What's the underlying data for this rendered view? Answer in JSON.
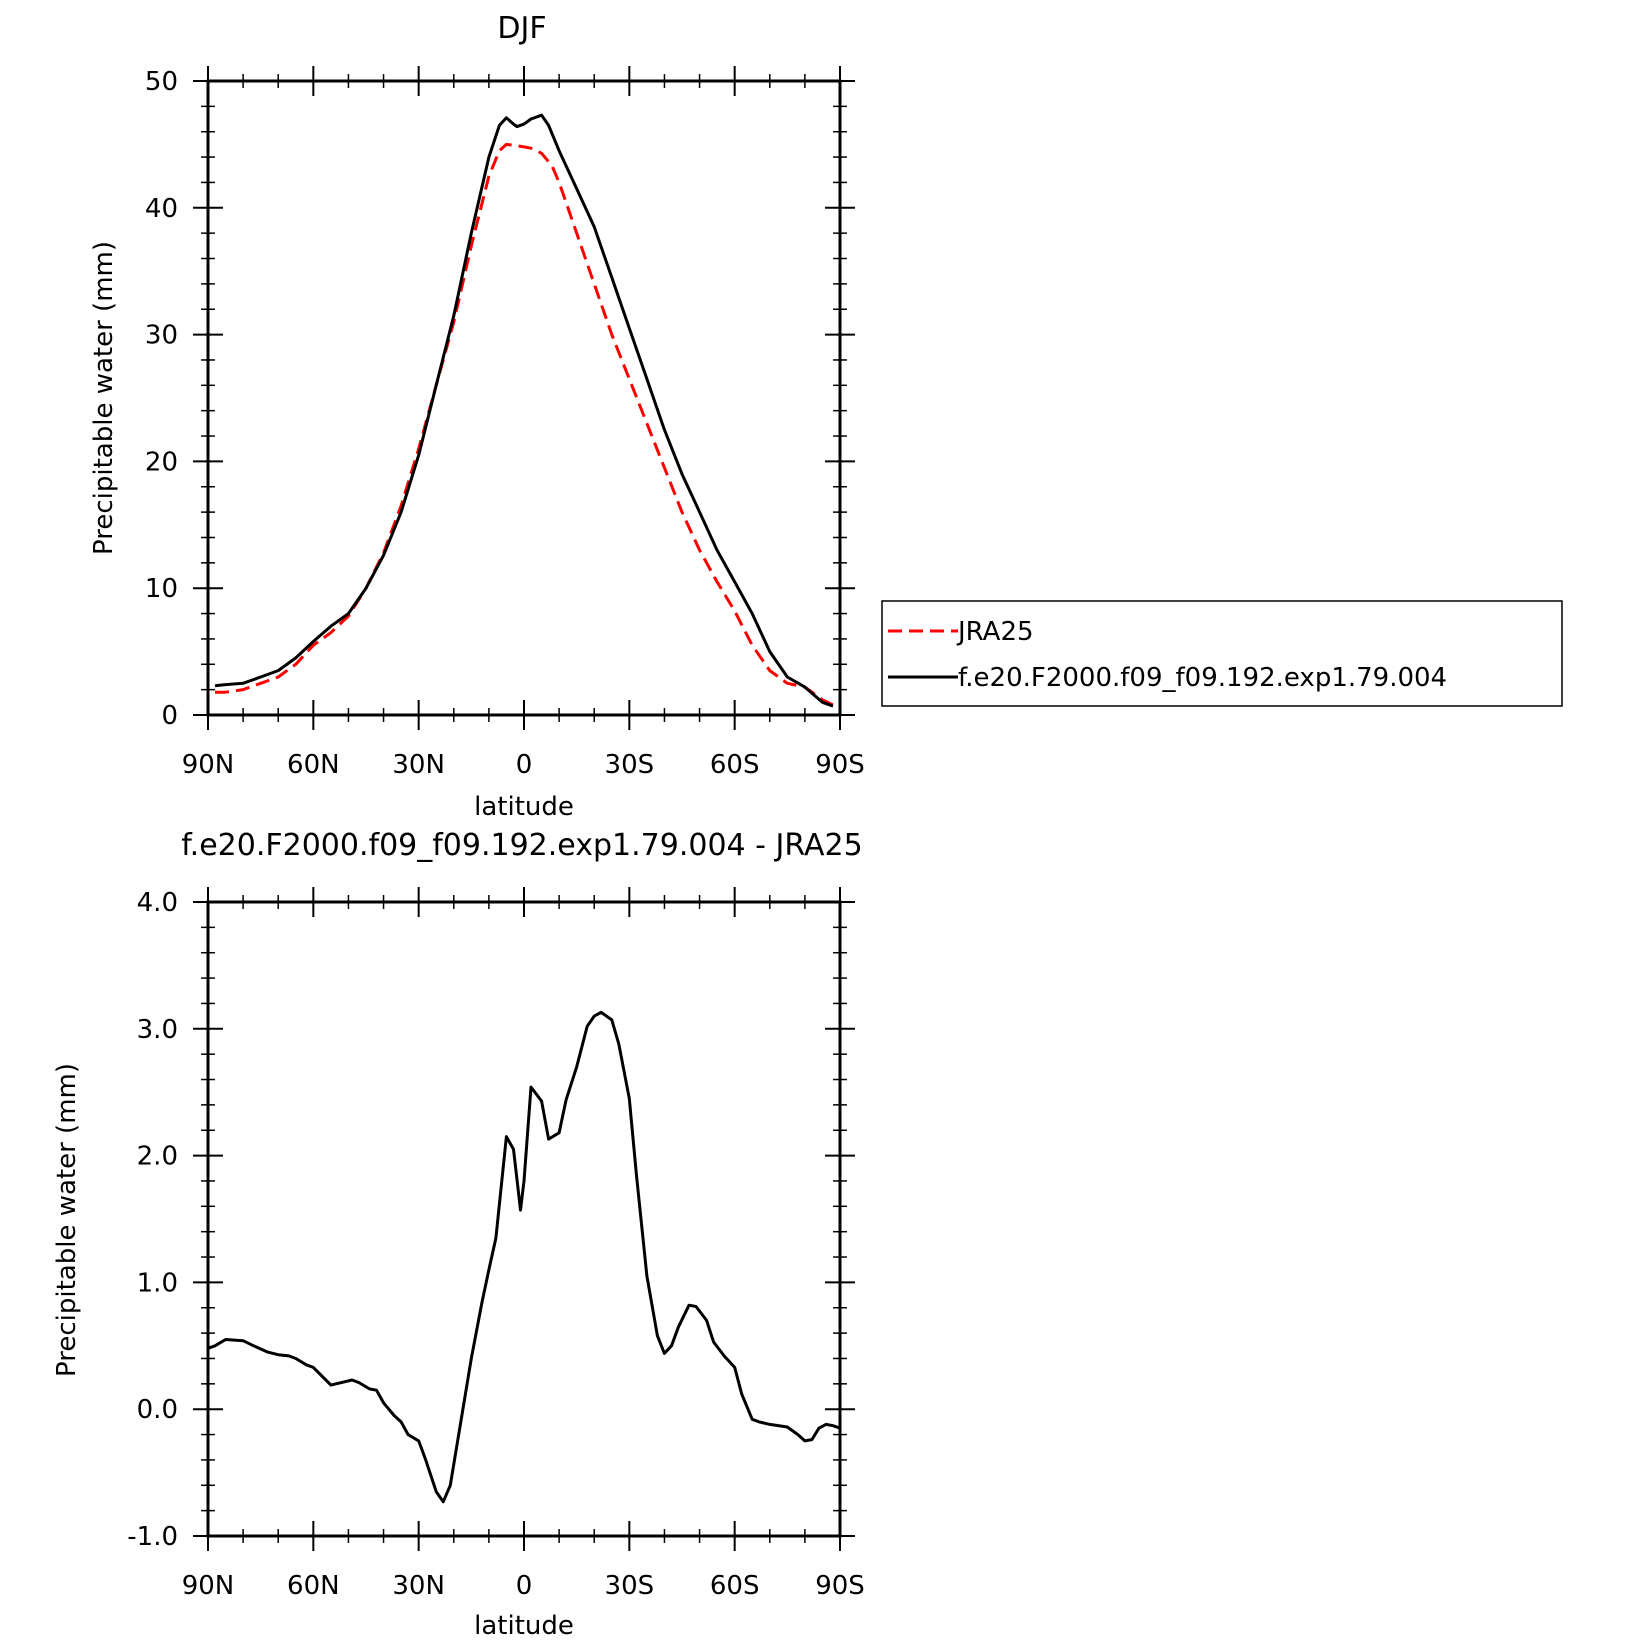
{
  "chart_data": [
    {
      "type": "line",
      "title": "DJF",
      "xlabel": "latitude",
      "ylabel": "Precipitable water (mm)",
      "xlim": [
        90,
        -90
      ],
      "ylim": [
        0,
        50
      ],
      "xticks": [
        90,
        60,
        30,
        0,
        -30,
        -60,
        -90
      ],
      "xtick_labels": [
        "90N",
        "60N",
        "30N",
        "0",
        "30S",
        "60S",
        "90S"
      ],
      "yticks": [
        0,
        10,
        20,
        30,
        40,
        50
      ],
      "ytick_labels": [
        "0",
        "10",
        "20",
        "30",
        "40",
        "50"
      ],
      "legend_position": "right, outside plot",
      "series": [
        {
          "name": "JRA25",
          "color": "#ff0000",
          "dash": "dashed",
          "x": [
            88,
            85,
            80,
            75,
            70,
            65,
            60,
            55,
            50,
            45,
            40,
            35,
            30,
            25,
            20,
            15,
            10,
            7,
            5,
            2,
            0,
            -2,
            -5,
            -8,
            -10,
            -15,
            -20,
            -25,
            -30,
            -35,
            -40,
            -45,
            -50,
            -55,
            -60,
            -65,
            -70,
            -75,
            -80,
            -85,
            -88
          ],
          "y": [
            1.8,
            1.8,
            2.0,
            2.5,
            3.0,
            4.0,
            5.5,
            6.5,
            7.8,
            10.0,
            12.8,
            16.5,
            21.0,
            26.0,
            31.0,
            37.0,
            42.5,
            44.5,
            45.0,
            44.9,
            44.8,
            44.7,
            44.3,
            43.3,
            42.0,
            38.0,
            34.0,
            30.0,
            26.5,
            23.0,
            19.5,
            16.0,
            13.0,
            10.5,
            8.2,
            5.5,
            3.5,
            2.5,
            2.2,
            1.2,
            0.8
          ]
        },
        {
          "name": "f.e20.F2000.f09_f09.192.exp1.79.004",
          "color": "#000000",
          "dash": "solid",
          "x": [
            88,
            85,
            80,
            75,
            70,
            65,
            60,
            55,
            50,
            45,
            40,
            35,
            30,
            25,
            20,
            15,
            10,
            7,
            5,
            3,
            2,
            0,
            -2,
            -5,
            -7,
            -10,
            -15,
            -20,
            -25,
            -30,
            -35,
            -40,
            -45,
            -50,
            -55,
            -60,
            -65,
            -70,
            -75,
            -80,
            -85,
            -88
          ],
          "y": [
            2.3,
            2.4,
            2.5,
            3.0,
            3.5,
            4.5,
            5.8,
            7.0,
            8.0,
            10.0,
            12.6,
            16.0,
            20.5,
            26.0,
            31.5,
            38.0,
            44.0,
            46.5,
            47.1,
            46.6,
            46.4,
            46.6,
            47.0,
            47.3,
            46.5,
            44.5,
            41.5,
            38.5,
            34.5,
            30.5,
            26.5,
            22.5,
            19.0,
            16.0,
            13.0,
            10.5,
            8.0,
            5.0,
            3.0,
            2.2,
            1.0,
            0.7
          ]
        }
      ]
    },
    {
      "type": "line",
      "title": "f.e20.F2000.f09_f09.192.exp1.79.004 - JRA25",
      "xlabel": "latitude",
      "ylabel": "Precipitable water (mm)",
      "xlim": [
        90,
        -90
      ],
      "ylim": [
        -1.0,
        4.0
      ],
      "xticks": [
        90,
        60,
        30,
        0,
        -30,
        -60,
        -90
      ],
      "xtick_labels": [
        "90N",
        "60N",
        "30N",
        "0",
        "30S",
        "60S",
        "90S"
      ],
      "yticks": [
        -1.0,
        0.0,
        1.0,
        2.0,
        3.0,
        4.0
      ],
      "ytick_labels": [
        "-1.0",
        "0.0",
        "1.0",
        "2.0",
        "3.0",
        "4.0"
      ],
      "series": [
        {
          "color": "#000000",
          "dash": "solid",
          "x": [
            90,
            88,
            85,
            80,
            77,
            73,
            70,
            67,
            65,
            62,
            60,
            55,
            52,
            49,
            47,
            44,
            42,
            40,
            37,
            35,
            33,
            30,
            28,
            25,
            23,
            21,
            18,
            15,
            12,
            10,
            8,
            5,
            3,
            1,
            0,
            -2,
            -5,
            -7,
            -10,
            -12,
            -15,
            -18,
            -20,
            -22,
            -25,
            -27,
            -30,
            -32,
            -35,
            -38,
            -40,
            -42,
            -44,
            -47,
            -49,
            -52,
            -54,
            -57,
            -60,
            -62,
            -65,
            -67,
            -70,
            -75,
            -78,
            -80,
            -82,
            -84,
            -86,
            -88,
            -90
          ],
          "y": [
            0.48,
            0.5,
            0.55,
            0.54,
            0.5,
            0.45,
            0.43,
            0.42,
            0.4,
            0.35,
            0.33,
            0.19,
            0.21,
            0.23,
            0.21,
            0.16,
            0.15,
            0.05,
            -0.05,
            -0.1,
            -0.2,
            -0.25,
            -0.4,
            -0.65,
            -0.73,
            -0.6,
            -0.1,
            0.4,
            0.84,
            1.1,
            1.35,
            2.15,
            2.05,
            1.57,
            1.8,
            2.54,
            2.43,
            2.13,
            2.18,
            2.44,
            2.7,
            3.02,
            3.1,
            3.13,
            3.07,
            2.88,
            2.45,
            1.85,
            1.05,
            0.58,
            0.44,
            0.5,
            0.65,
            0.82,
            0.81,
            0.7,
            0.53,
            0.42,
            0.33,
            0.12,
            -0.08,
            -0.1,
            -0.12,
            -0.14,
            -0.2,
            -0.25,
            -0.24,
            -0.15,
            -0.12,
            -0.13,
            -0.15
          ]
        }
      ]
    }
  ]
}
